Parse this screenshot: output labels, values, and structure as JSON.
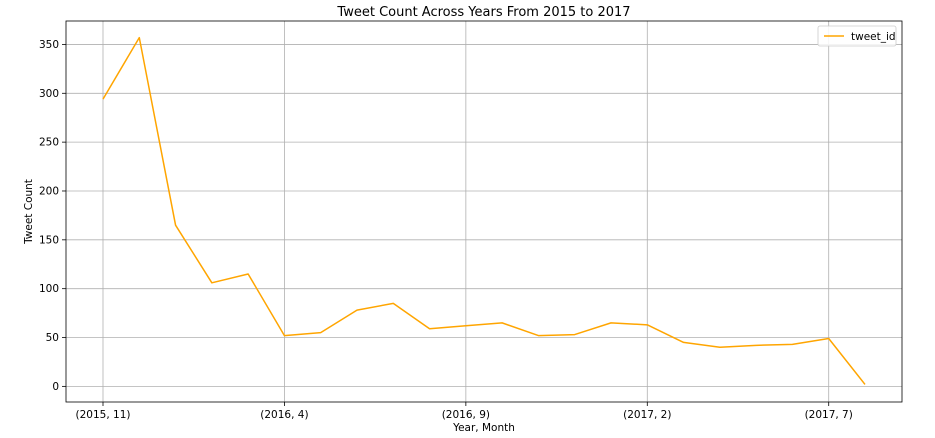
{
  "chart_data": {
    "type": "line",
    "title": "Tweet Count Across Years From 2015 to 2017",
    "xlabel": "Year, Month",
    "ylabel": "Tweet Count",
    "categories": [
      "(2015, 11)",
      "(2015, 12)",
      "(2016, 1)",
      "(2016, 2)",
      "(2016, 3)",
      "(2016, 4)",
      "(2016, 5)",
      "(2016, 6)",
      "(2016, 7)",
      "(2016, 8)",
      "(2016, 9)",
      "(2016, 10)",
      "(2016, 11)",
      "(2016, 12)",
      "(2017, 1)",
      "(2017, 2)",
      "(2017, 3)",
      "(2017, 4)",
      "(2017, 5)",
      "(2017, 6)",
      "(2017, 7)",
      "(2017, 8)"
    ],
    "x_tick_labels": [
      "(2015, 11)",
      "(2016, 4)",
      "(2016, 9)",
      "(2017, 2)",
      "(2017, 7)"
    ],
    "y_ticks": [
      0,
      50,
      100,
      150,
      200,
      250,
      300,
      350
    ],
    "ylim": [
      -16,
      374
    ],
    "series": [
      {
        "name": "tweet_id",
        "color": "#ffa500",
        "values": [
          294,
          357,
          165,
          106,
          115,
          52,
          55,
          78,
          85,
          59,
          62,
          65,
          52,
          53,
          65,
          63,
          45,
          40,
          42,
          43,
          49,
          2
        ]
      }
    ],
    "grid": true,
    "legend": "top-right"
  }
}
